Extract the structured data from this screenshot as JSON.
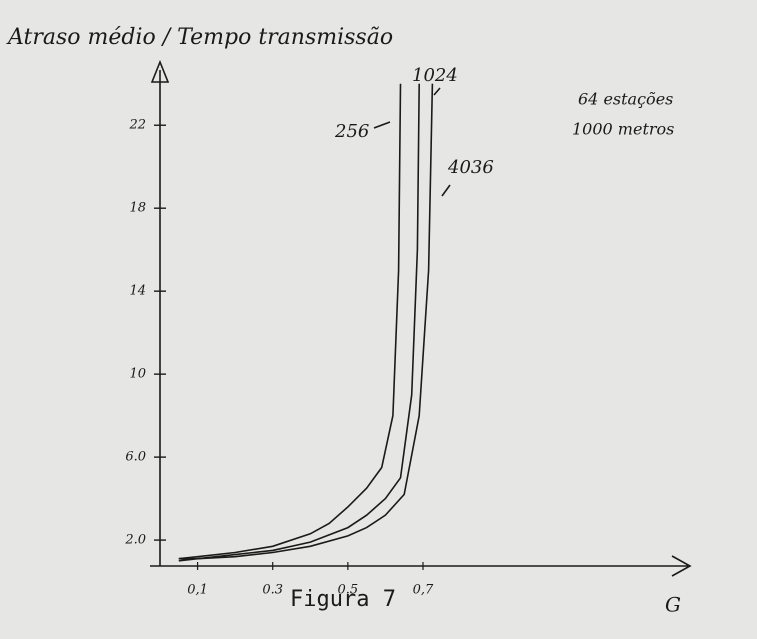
{
  "chart_data": {
    "type": "line",
    "ylabel": "Atraso médio / Tempo transmissão",
    "xlabel": "G",
    "caption": "Figura 7",
    "annotations": [
      "64 estações",
      "1000 metros"
    ],
    "xlim": [
      0,
      1.4
    ],
    "ylim": [
      0.75,
      25
    ],
    "xticks": [
      {
        "value": 0.1,
        "label": "0,1"
      },
      {
        "value": 0.3,
        "label": "0.3"
      },
      {
        "value": 0.5,
        "label": "0.5"
      },
      {
        "value": 0.7,
        "label": "0,7"
      }
    ],
    "yticks": [
      {
        "value": 2,
        "label": "2.0"
      },
      {
        "value": 6,
        "label": "6.0"
      },
      10,
      14,
      18,
      22
    ],
    "series": [
      {
        "name": "256",
        "color": "#1a1a1a",
        "x": [
          0.05,
          0.1,
          0.2,
          0.3,
          0.4,
          0.45,
          0.5,
          0.55,
          0.59,
          0.62,
          0.635,
          0.64
        ],
        "values": [
          1.1,
          1.2,
          1.4,
          1.7,
          2.3,
          2.8,
          3.6,
          4.5,
          5.5,
          8,
          15,
          24
        ]
      },
      {
        "name": "1024",
        "color": "#1a1a1a",
        "x": [
          0.05,
          0.1,
          0.2,
          0.3,
          0.4,
          0.5,
          0.55,
          0.6,
          0.64,
          0.67,
          0.685,
          0.69
        ],
        "values": [
          1.1,
          1.1,
          1.3,
          1.5,
          1.9,
          2.6,
          3.2,
          4,
          5,
          9,
          16,
          24
        ]
      },
      {
        "name": "4036",
        "color": "#1a1a1a",
        "x": [
          0.05,
          0.1,
          0.2,
          0.3,
          0.4,
          0.5,
          0.55,
          0.6,
          0.65,
          0.69,
          0.715,
          0.725
        ],
        "values": [
          1.0,
          1.1,
          1.2,
          1.4,
          1.7,
          2.2,
          2.6,
          3.2,
          4.2,
          8,
          15,
          24
        ]
      }
    ]
  }
}
